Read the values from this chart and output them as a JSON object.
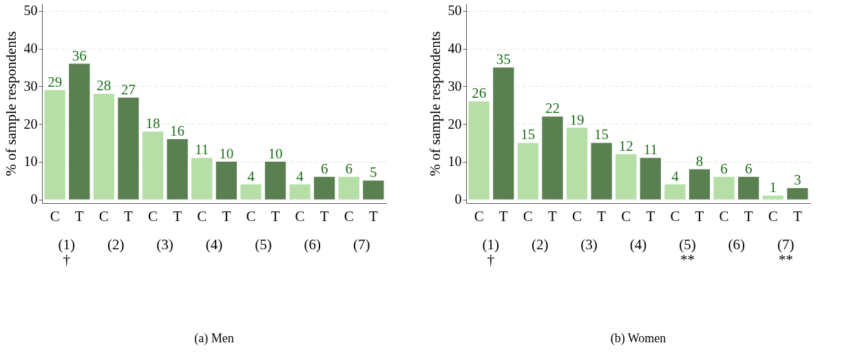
{
  "chart_data": [
    {
      "type": "bar",
      "title": "(a)    Men",
      "ylabel": "% of sample respondents",
      "categories": [
        "C",
        "T",
        "C",
        "T",
        "C",
        "T",
        "C",
        "T",
        "C",
        "T",
        "C",
        "T",
        "C",
        "T"
      ],
      "values": [
        29,
        36,
        28,
        27,
        18,
        16,
        11,
        10,
        4,
        10,
        4,
        6,
        6,
        5
      ],
      "colors": [
        "#b5dfa6",
        "#5a7f50",
        "#b5dfa6",
        "#5a7f50",
        "#b5dfa6",
        "#5a7f50",
        "#b5dfa6",
        "#5a7f50",
        "#b5dfa6",
        "#5a7f50",
        "#b5dfa6",
        "#5a7f50",
        "#b5dfa6",
        "#5a7f50"
      ],
      "ylim": [
        -1,
        52
      ],
      "yticks": [
        0,
        10,
        20,
        30,
        40,
        50
      ],
      "grid": true,
      "data_labels": true,
      "annotations": [
        "(1)\n†",
        "(2)",
        "(3)",
        "(4)",
        "(5)",
        "(6)",
        "(7)"
      ]
    },
    {
      "type": "bar",
      "title": "(b) Women",
      "ylabel": "% of sample respondents",
      "categories": [
        "C",
        "T",
        "C",
        "T",
        "C",
        "T",
        "C",
        "T",
        "C",
        "T",
        "C",
        "T",
        "C",
        "T"
      ],
      "values": [
        26,
        35,
        15,
        22,
        19,
        15,
        12,
        11,
        4,
        8,
        6,
        6,
        1,
        3
      ],
      "colors": [
        "#b5dfa6",
        "#5a7f50",
        "#b5dfa6",
        "#5a7f50",
        "#b5dfa6",
        "#5a7f50",
        "#b5dfa6",
        "#5a7f50",
        "#b5dfa6",
        "#5a7f50",
        "#b5dfa6",
        "#5a7f50",
        "#b5dfa6",
        "#5a7f50"
      ],
      "ylim": [
        -1,
        52
      ],
      "yticks": [
        0,
        10,
        20,
        30,
        40,
        50
      ],
      "grid": true,
      "data_labels": true,
      "annotations": [
        "(1)\n†",
        "(2)",
        "(3)",
        "(4)",
        "(5)\n**",
        "(6)",
        "(7)\n**"
      ]
    }
  ]
}
